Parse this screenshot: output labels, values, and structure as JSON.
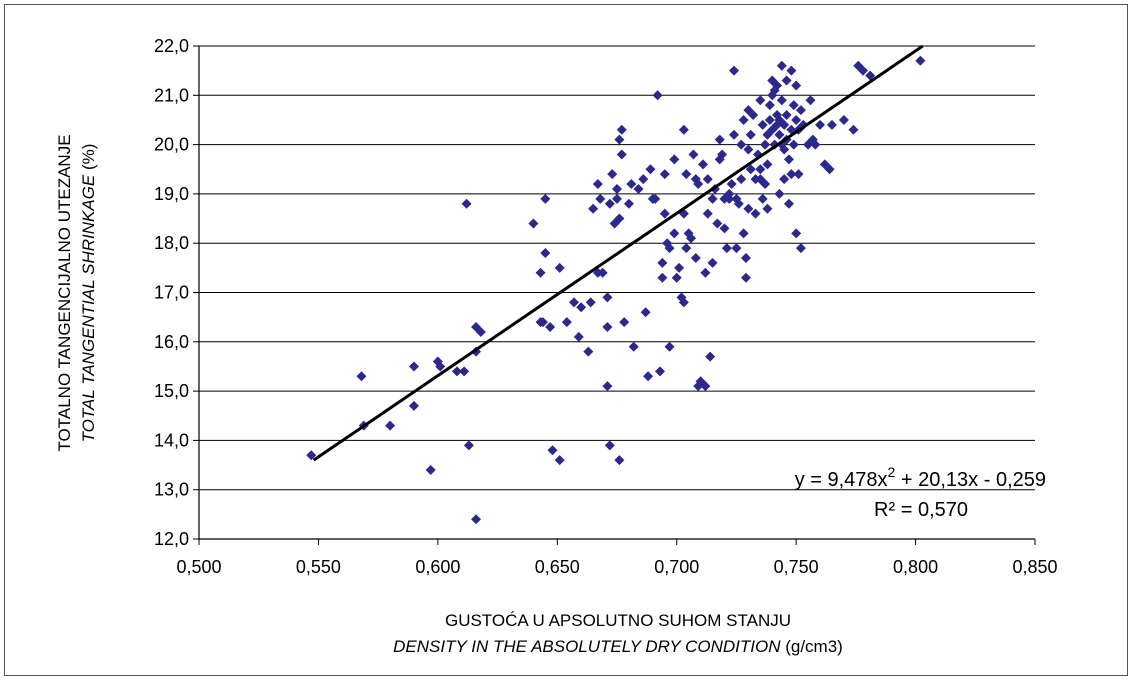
{
  "chart_data": {
    "type": "scatter",
    "title": "",
    "ylabel_line1": "TOTALNO TANGENCIJALNO UTEZANJE",
    "ylabel_line2_italic": "TOTAL TANGENTIAL SHRINKAGE",
    "ylabel_line2_unit": " (%)",
    "xlabel_line1": "GUSTOĆA U APSOLUTNO SUHOM STANJU",
    "xlabel_line2_italic": "DENSITY IN THE ABSOLUTELY DRY CONDITION",
    "xlabel_line2_unit": " (g/cm3)",
    "xlim": [
      0.5,
      0.85
    ],
    "ylim": [
      12.0,
      22.0
    ],
    "x_ticks": [
      "0,500",
      "0,550",
      "0,600",
      "0,650",
      "0,700",
      "0,750",
      "0,800",
      "0,850"
    ],
    "y_ticks": [
      "12,0",
      "13,0",
      "14,0",
      "15,0",
      "16,0",
      "17,0",
      "18,0",
      "19,0",
      "20,0",
      "21,0",
      "22,0"
    ],
    "grid": "horizontal",
    "point_color": "#2b2a8c",
    "trendline": {
      "x_start": 0.548,
      "y_start": 13.6,
      "x_end": 0.803,
      "y_end": 22.0,
      "color": "#000000"
    },
    "equation": "y = 9,478x",
    "equation_exp": "2",
    "equation_rest": " + 20,13x - 0,259",
    "r2": "R² = 0,570",
    "points": [
      [
        0.547,
        13.7
      ],
      [
        0.568,
        15.3
      ],
      [
        0.569,
        14.3
      ],
      [
        0.58,
        14.3
      ],
      [
        0.59,
        14.7
      ],
      [
        0.59,
        15.5
      ],
      [
        0.597,
        13.4
      ],
      [
        0.6,
        15.6
      ],
      [
        0.601,
        15.5
      ],
      [
        0.608,
        15.4
      ],
      [
        0.611,
        15.4
      ],
      [
        0.612,
        18.8
      ],
      [
        0.613,
        13.9
      ],
      [
        0.616,
        12.4
      ],
      [
        0.616,
        15.8
      ],
      [
        0.616,
        16.3
      ],
      [
        0.618,
        16.2
      ],
      [
        0.64,
        18.4
      ],
      [
        0.643,
        16.4
      ],
      [
        0.643,
        17.4
      ],
      [
        0.644,
        16.4
      ],
      [
        0.645,
        17.8
      ],
      [
        0.645,
        18.9
      ],
      [
        0.647,
        16.3
      ],
      [
        0.648,
        13.8
      ],
      [
        0.651,
        17.5
      ],
      [
        0.651,
        13.6
      ],
      [
        0.654,
        16.4
      ],
      [
        0.657,
        16.8
      ],
      [
        0.659,
        16.1
      ],
      [
        0.66,
        16.7
      ],
      [
        0.663,
        15.8
      ],
      [
        0.664,
        16.8
      ],
      [
        0.665,
        18.7
      ],
      [
        0.667,
        17.4
      ],
      [
        0.667,
        19.2
      ],
      [
        0.668,
        18.9
      ],
      [
        0.669,
        17.4
      ],
      [
        0.671,
        16.9
      ],
      [
        0.671,
        16.3
      ],
      [
        0.671,
        15.1
      ],
      [
        0.672,
        13.9
      ],
      [
        0.672,
        18.8
      ],
      [
        0.673,
        19.4
      ],
      [
        0.674,
        18.4
      ],
      [
        0.675,
        18.9
      ],
      [
        0.675,
        19.1
      ],
      [
        0.676,
        18.5
      ],
      [
        0.676,
        13.6
      ],
      [
        0.676,
        20.1
      ],
      [
        0.677,
        20.3
      ],
      [
        0.677,
        19.8
      ],
      [
        0.678,
        16.4
      ],
      [
        0.68,
        18.8
      ],
      [
        0.681,
        19.2
      ],
      [
        0.682,
        15.9
      ],
      [
        0.684,
        19.1
      ],
      [
        0.686,
        19.3
      ],
      [
        0.687,
        16.6
      ],
      [
        0.688,
        15.3
      ],
      [
        0.689,
        19.5
      ],
      [
        0.69,
        18.9
      ],
      [
        0.691,
        18.9
      ],
      [
        0.692,
        21.0
      ],
      [
        0.693,
        15.4
      ],
      [
        0.694,
        17.6
      ],
      [
        0.694,
        17.3
      ],
      [
        0.695,
        18.6
      ],
      [
        0.695,
        19.4
      ],
      [
        0.696,
        18.0
      ],
      [
        0.697,
        17.9
      ],
      [
        0.697,
        15.9
      ],
      [
        0.699,
        19.7
      ],
      [
        0.699,
        18.2
      ],
      [
        0.7,
        17.3
      ],
      [
        0.701,
        17.5
      ],
      [
        0.702,
        16.9
      ],
      [
        0.703,
        18.6
      ],
      [
        0.703,
        20.3
      ],
      [
        0.703,
        16.8
      ],
      [
        0.704,
        19.4
      ],
      [
        0.704,
        17.9
      ],
      [
        0.705,
        18.2
      ],
      [
        0.706,
        18.1
      ],
      [
        0.707,
        19.8
      ],
      [
        0.708,
        19.3
      ],
      [
        0.708,
        17.7
      ],
      [
        0.709,
        15.1
      ],
      [
        0.709,
        19.2
      ],
      [
        0.71,
        15.2
      ],
      [
        0.711,
        19.6
      ],
      [
        0.712,
        17.4
      ],
      [
        0.712,
        15.1
      ],
      [
        0.713,
        19.3
      ],
      [
        0.713,
        18.6
      ],
      [
        0.714,
        15.7
      ],
      [
        0.715,
        18.9
      ],
      [
        0.715,
        17.6
      ],
      [
        0.716,
        19.1
      ],
      [
        0.717,
        18.4
      ],
      [
        0.718,
        19.7
      ],
      [
        0.718,
        20.1
      ],
      [
        0.719,
        19.8
      ],
      [
        0.72,
        18.3
      ],
      [
        0.72,
        18.9
      ],
      [
        0.721,
        17.9
      ],
      [
        0.722,
        19.0
      ],
      [
        0.722,
        18.9
      ],
      [
        0.723,
        19.2
      ],
      [
        0.724,
        21.5
      ],
      [
        0.724,
        20.2
      ],
      [
        0.725,
        18.9
      ],
      [
        0.725,
        17.9
      ],
      [
        0.726,
        18.8
      ],
      [
        0.727,
        20.0
      ],
      [
        0.727,
        19.3
      ],
      [
        0.728,
        20.5
      ],
      [
        0.728,
        18.2
      ],
      [
        0.729,
        17.7
      ],
      [
        0.729,
        17.3
      ],
      [
        0.73,
        19.9
      ],
      [
        0.73,
        20.7
      ],
      [
        0.73,
        18.7
      ],
      [
        0.731,
        20.2
      ],
      [
        0.731,
        19.5
      ],
      [
        0.732,
        20.6
      ],
      [
        0.733,
        19.3
      ],
      [
        0.733,
        18.6
      ],
      [
        0.734,
        19.8
      ],
      [
        0.735,
        20.9
      ],
      [
        0.735,
        19.5
      ],
      [
        0.735,
        19.3
      ],
      [
        0.736,
        20.4
      ],
      [
        0.736,
        18.9
      ],
      [
        0.737,
        20.0
      ],
      [
        0.737,
        19.2
      ],
      [
        0.738,
        20.2
      ],
      [
        0.738,
        19.6
      ],
      [
        0.738,
        18.7
      ],
      [
        0.739,
        20.5
      ],
      [
        0.739,
        20.8
      ],
      [
        0.74,
        21.0
      ],
      [
        0.74,
        20.3
      ],
      [
        0.74,
        21.3
      ],
      [
        0.741,
        20.0
      ],
      [
        0.741,
        21.1
      ],
      [
        0.742,
        20.4
      ],
      [
        0.742,
        20.6
      ],
      [
        0.742,
        21.2
      ],
      [
        0.743,
        20.2
      ],
      [
        0.743,
        20.5
      ],
      [
        0.743,
        19.0
      ],
      [
        0.744,
        20.0
      ],
      [
        0.744,
        21.6
      ],
      [
        0.744,
        20.9
      ],
      [
        0.745,
        20.4
      ],
      [
        0.745,
        19.9
      ],
      [
        0.745,
        19.3
      ],
      [
        0.746,
        21.3
      ],
      [
        0.746,
        20.6
      ],
      [
        0.746,
        20.1
      ],
      [
        0.747,
        19.7
      ],
      [
        0.747,
        18.8
      ],
      [
        0.748,
        21.5
      ],
      [
        0.748,
        20.3
      ],
      [
        0.748,
        19.4
      ],
      [
        0.749,
        20.0
      ],
      [
        0.749,
        20.8
      ],
      [
        0.75,
        21.2
      ],
      [
        0.75,
        20.5
      ],
      [
        0.75,
        18.2
      ],
      [
        0.751,
        20.3
      ],
      [
        0.751,
        19.4
      ],
      [
        0.752,
        20.7
      ],
      [
        0.752,
        17.9
      ],
      [
        0.753,
        20.4
      ],
      [
        0.755,
        20.0
      ],
      [
        0.756,
        20.9
      ],
      [
        0.757,
        20.1
      ],
      [
        0.758,
        20.0
      ],
      [
        0.76,
        20.4
      ],
      [
        0.762,
        19.6
      ],
      [
        0.764,
        19.5
      ],
      [
        0.765,
        20.4
      ],
      [
        0.77,
        20.5
      ],
      [
        0.774,
        20.3
      ],
      [
        0.776,
        21.6
      ],
      [
        0.778,
        21.5
      ],
      [
        0.781,
        21.4
      ],
      [
        0.802,
        21.7
      ]
    ]
  }
}
